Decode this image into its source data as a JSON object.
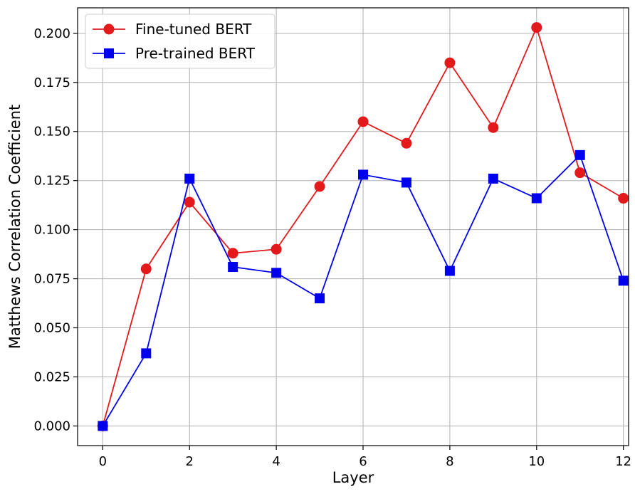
{
  "chart_data": {
    "type": "line",
    "xlabel": "Layer",
    "ylabel": "Matthews Correlation Coefficient",
    "xlim": [
      -0.58,
      12.12
    ],
    "ylim": [
      -0.01,
      0.213
    ],
    "grid": true,
    "legend_position": "top-left",
    "x_ticks": [
      0,
      2,
      4,
      6,
      8,
      10,
      12
    ],
    "x_tick_labels": [
      "0",
      "2",
      "4",
      "6",
      "8",
      "10",
      "12"
    ],
    "y_ticks": [
      0.0,
      0.025,
      0.05,
      0.075,
      0.1,
      0.125,
      0.15,
      0.175,
      0.2
    ],
    "y_tick_labels": [
      "0.000",
      "0.025",
      "0.050",
      "0.075",
      "0.100",
      "0.125",
      "0.150",
      "0.175",
      "0.200"
    ],
    "x": [
      0,
      1,
      2,
      3,
      4,
      5,
      6,
      7,
      8,
      9,
      10,
      11,
      12
    ],
    "series": [
      {
        "name": "Fine-tuned BERT",
        "color": "#e31a1c",
        "marker": "circle",
        "values": [
          0.0,
          0.08,
          0.114,
          0.088,
          0.09,
          0.122,
          0.155,
          0.144,
          0.185,
          0.152,
          0.203,
          0.129,
          0.116
        ]
      },
      {
        "name": "Pre-trained BERT",
        "color": "#0000ee",
        "marker": "square",
        "values": [
          0.0,
          0.037,
          0.126,
          0.081,
          0.078,
          0.065,
          0.128,
          0.124,
          0.079,
          0.126,
          0.116,
          0.138,
          0.074
        ]
      }
    ]
  }
}
